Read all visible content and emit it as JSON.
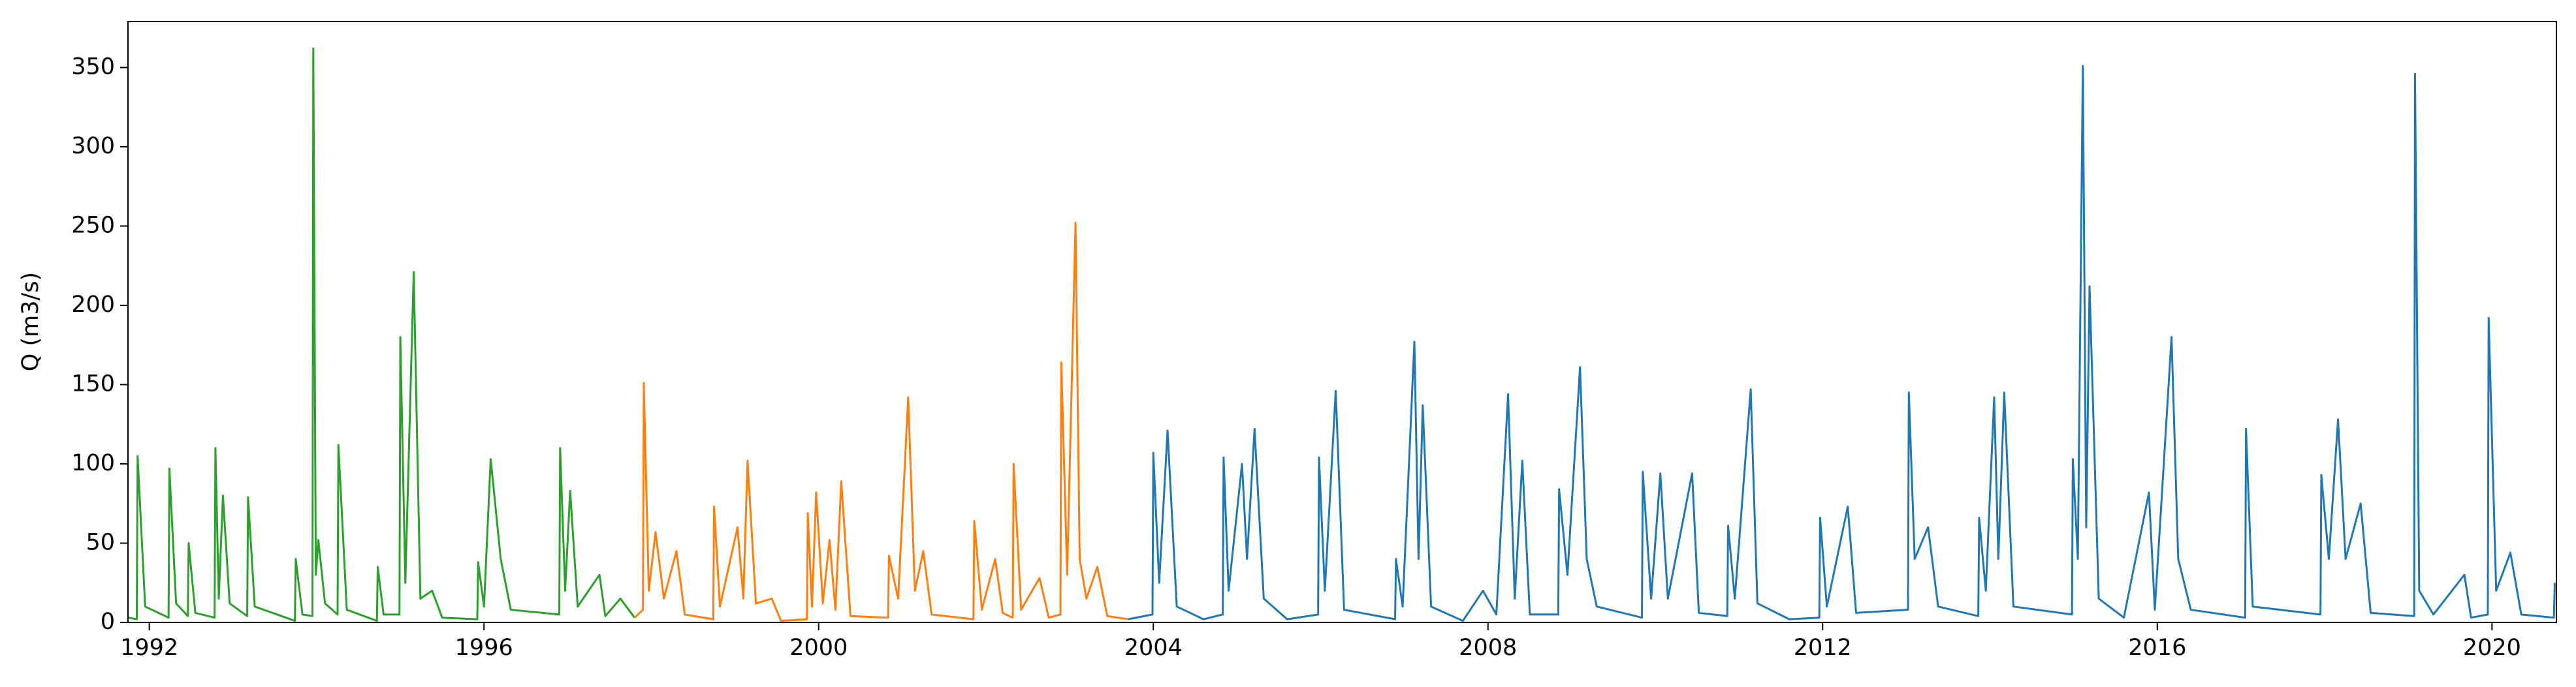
{
  "chart_data": {
    "type": "line",
    "y_label": "Q (m3/s)",
    "xlim": [
      1991.745,
      2020.77
    ],
    "ylim": [
      0,
      379
    ],
    "xticks": [
      1992,
      1996,
      2000,
      2004,
      2008,
      2012,
      2016,
      2020
    ],
    "yticks": [
      0,
      50,
      100,
      150,
      200,
      250,
      300,
      350
    ],
    "grid": false,
    "series": [
      {
        "color": "#2ca02c",
        "x": [
          1991.75,
          1991.85,
          1991.86,
          1991.95,
          1992.23,
          1992.24,
          1992.32,
          1992.46,
          1992.47,
          1992.55,
          1992.78,
          1992.79,
          1992.83,
          1992.88,
          1992.96,
          1993.17,
          1993.18,
          1993.26,
          1993.74,
          1993.75,
          1993.83,
          1993.95,
          1993.96,
          1993.99,
          1994.02,
          1994.1,
          1994.25,
          1994.26,
          1994.36,
          1994.72,
          1994.73,
          1994.8,
          1994.99,
          1995.0,
          1995.06,
          1995.16,
          1995.24,
          1995.38,
          1995.5,
          1995.92,
          1995.93,
          1996.0,
          1996.08,
          1996.2,
          1996.32,
          1996.9,
          1996.91,
          1996.97,
          1997.03,
          1997.12,
          1997.38,
          1997.45,
          1997.63,
          1997.8
        ],
        "values": [
          3,
          2,
          105,
          10,
          3,
          97,
          12,
          4,
          50,
          6,
          3,
          110,
          15,
          80,
          12,
          4,
          79,
          10,
          1,
          40,
          5,
          4,
          362,
          30,
          52,
          12,
          5,
          112,
          8,
          1,
          35,
          5,
          5,
          180,
          25,
          221,
          15,
          20,
          3,
          2,
          38,
          10,
          103,
          40,
          8,
          5,
          110,
          20,
          83,
          10,
          30,
          4,
          15,
          3
        ]
      },
      {
        "color": "#ff7f0e",
        "x": [
          1997.8,
          1997.9,
          1997.91,
          1997.97,
          1998.05,
          1998.15,
          1998.3,
          1998.4,
          1998.74,
          1998.75,
          1998.82,
          1999.03,
          1999.1,
          1999.15,
          1999.25,
          1999.44,
          1999.55,
          1999.86,
          1999.87,
          1999.92,
          1999.97,
          2000.05,
          2000.13,
          2000.2,
          2000.27,
          2000.38,
          2000.83,
          2000.84,
          2000.95,
          2001.07,
          2001.15,
          2001.25,
          2001.35,
          2001.85,
          2001.86,
          2001.95,
          2002.11,
          2002.2,
          2002.32,
          2002.33,
          2002.42,
          2002.64,
          2002.75,
          2002.89,
          2002.9,
          2002.97,
          2003.07,
          2003.12,
          2003.2,
          2003.33,
          2003.45,
          2003.7
        ],
        "values": [
          3,
          8,
          151,
          20,
          57,
          15,
          45,
          5,
          2,
          73,
          10,
          60,
          15,
          102,
          12,
          15,
          1,
          2,
          69,
          10,
          82,
          12,
          52,
          8,
          89,
          4,
          3,
          42,
          15,
          142,
          20,
          45,
          5,
          2,
          64,
          8,
          40,
          6,
          3,
          100,
          8,
          28,
          3,
          5,
          164,
          30,
          252,
          40,
          15,
          35,
          4,
          2
        ]
      },
      {
        "color": "#1f77b4",
        "x": [
          2003.7,
          2003.99,
          2004.0,
          2004.07,
          2004.17,
          2004.28,
          2004.6,
          2004.83,
          2004.84,
          2004.9,
          2005.06,
          2005.12,
          2005.21,
          2005.32,
          2005.6,
          2005.97,
          2005.98,
          2006.05,
          2006.18,
          2006.28,
          2006.89,
          2006.9,
          2006.98,
          2007.12,
          2007.17,
          2007.22,
          2007.32,
          2007.7,
          2007.94,
          2008.1,
          2008.24,
          2008.32,
          2008.41,
          2008.5,
          2008.84,
          2008.85,
          2008.95,
          2009.1,
          2009.18,
          2009.3,
          2009.84,
          2009.85,
          2009.95,
          2010.06,
          2010.15,
          2010.44,
          2010.52,
          2010.86,
          2010.87,
          2010.95,
          2011.14,
          2011.22,
          2011.6,
          2011.96,
          2011.97,
          2012.05,
          2012.3,
          2012.4,
          2013.02,
          2013.03,
          2013.1,
          2013.26,
          2013.38,
          2013.86,
          2013.87,
          2013.95,
          2014.05,
          2014.1,
          2014.17,
          2014.28,
          2014.98,
          2014.99,
          2015.05,
          2015.11,
          2015.15,
          2015.19,
          2015.3,
          2015.6,
          2015.9,
          2015.97,
          2016.17,
          2016.25,
          2016.4,
          2017.05,
          2017.06,
          2017.14,
          2017.95,
          2017.96,
          2018.05,
          2018.16,
          2018.25,
          2018.43,
          2018.55,
          2019.07,
          2019.08,
          2019.13,
          2019.3,
          2019.67,
          2019.75,
          2019.95,
          2019.96,
          2020.05,
          2020.22,
          2020.35,
          2020.74,
          2020.75
        ],
        "values": [
          2,
          5,
          107,
          25,
          121,
          10,
          2,
          5,
          104,
          20,
          100,
          40,
          122,
          15,
          2,
          5,
          104,
          20,
          146,
          8,
          2,
          40,
          10,
          177,
          40,
          137,
          10,
          1,
          20,
          5,
          144,
          15,
          102,
          5,
          5,
          84,
          30,
          161,
          40,
          10,
          3,
          95,
          15,
          94,
          15,
          94,
          6,
          4,
          61,
          15,
          147,
          12,
          2,
          3,
          66,
          10,
          73,
          6,
          8,
          145,
          40,
          60,
          10,
          4,
          66,
          20,
          142,
          40,
          145,
          10,
          5,
          103,
          40,
          351,
          60,
          212,
          15,
          3,
          82,
          8,
          180,
          40,
          8,
          3,
          122,
          10,
          5,
          93,
          40,
          128,
          40,
          75,
          6,
          4,
          346,
          20,
          5,
          30,
          3,
          5,
          192,
          20,
          44,
          5,
          3,
          25
        ]
      }
    ]
  }
}
